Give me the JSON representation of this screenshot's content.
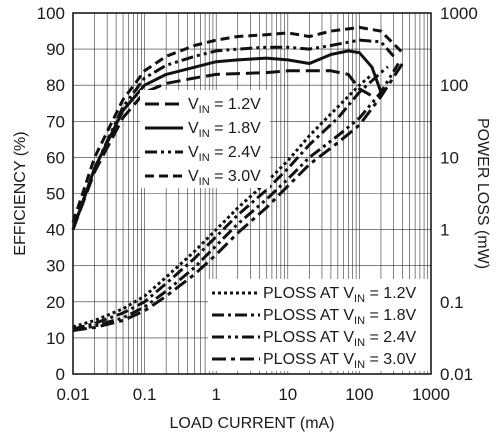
{
  "chart_data": {
    "type": "line",
    "title": "",
    "xlabel": "LOAD CURRENT (mA)",
    "ylabel_left": "EFFICIENCY (%)",
    "ylabel_right": "POWER LOSS (mW)",
    "x_scale": "log",
    "xlim": [
      0.01,
      1000
    ],
    "ylim_left": [
      0,
      100
    ],
    "ylim_right": [
      0.01,
      1000
    ],
    "grid": true,
    "x_ticks": [
      "0.01",
      "0.1",
      "1",
      "10",
      "100",
      "1000"
    ],
    "y_left_ticks": [
      "0",
      "10",
      "20",
      "30",
      "40",
      "50",
      "60",
      "70",
      "80",
      "90",
      "100"
    ],
    "y_right_ticks": [
      "0.01",
      "0.1",
      "1",
      "10",
      "100",
      "1000"
    ],
    "legend_efficiency": {
      "placement": "center-left",
      "entries": [
        {
          "main": "V",
          "sub": "IN",
          "tail": " = 1.2V",
          "dash": "14,6"
        },
        {
          "main": "V",
          "sub": "IN",
          "tail": " = 1.8V",
          "dash": ""
        },
        {
          "main": "V",
          "sub": "IN",
          "tail": " = 2.4V",
          "dash": "12,4,3,4,3,4"
        },
        {
          "main": "V",
          "sub": "IN",
          "tail": " = 3.0V",
          "dash": "9,5"
        }
      ]
    },
    "legend_ploss": {
      "placement": "bottom-right",
      "entries": [
        {
          "main": "PLOSS AT V",
          "sub": "IN",
          "tail": " = 1.2V",
          "dash": "3,3"
        },
        {
          "main": "PLOSS AT V",
          "sub": "IN",
          "tail": " = 1.8V",
          "dash": "12,4,3,4"
        },
        {
          "main": "PLOSS AT V",
          "sub": "IN",
          "tail": " = 2.4V",
          "dash": "12,4,3,4,3,4"
        },
        {
          "main": "PLOSS AT V",
          "sub": "IN",
          "tail": " = 3.0V",
          "dash": "14,5,4,5"
        }
      ]
    },
    "series": [
      {
        "group": "efficiency",
        "axis": "left",
        "dash": "14,6",
        "x": [
          0.01,
          0.02,
          0.05,
          0.1,
          0.2,
          0.5,
          1,
          2,
          5,
          10,
          20,
          40,
          70,
          100,
          150
        ],
        "y": [
          40,
          56,
          71,
          78,
          80.5,
          82,
          83,
          83.2,
          83.5,
          84,
          84,
          84,
          83,
          79,
          77
        ]
      },
      {
        "group": "efficiency",
        "axis": "left",
        "dash": "",
        "x": [
          0.01,
          0.02,
          0.05,
          0.1,
          0.2,
          0.5,
          1,
          2,
          5,
          10,
          20,
          40,
          70,
          100,
          150,
          200
        ],
        "y": [
          40,
          57,
          73,
          80,
          83,
          85,
          86.5,
          87,
          87.5,
          87,
          86,
          88.5,
          89.5,
          89,
          85,
          78
        ]
      },
      {
        "group": "efficiency",
        "axis": "left",
        "dash": "12,4,3,4,3,4",
        "x": [
          0.01,
          0.02,
          0.05,
          0.1,
          0.2,
          0.5,
          1,
          2,
          5,
          10,
          20,
          40,
          100,
          200,
          300
        ],
        "y": [
          40,
          57,
          74,
          82,
          85.5,
          88,
          89.5,
          90,
          90.5,
          90.5,
          90,
          91,
          92.5,
          92,
          88
        ]
      },
      {
        "group": "efficiency",
        "axis": "left",
        "dash": "9,5",
        "x": [
          0.01,
          0.02,
          0.05,
          0.1,
          0.2,
          0.5,
          1,
          2,
          5,
          10,
          20,
          40,
          100,
          200,
          400
        ],
        "y": [
          42,
          60,
          76,
          84,
          88,
          91,
          92.5,
          93.5,
          94,
          94.5,
          93.5,
          95,
          96,
          95,
          89
        ]
      },
      {
        "group": "ploss",
        "axis": "right",
        "dash": "3,3",
        "x": [
          0.01,
          0.02,
          0.05,
          0.1,
          0.2,
          0.5,
          1,
          2,
          5,
          10,
          20,
          50,
          100,
          150
        ],
        "y": [
          0.045,
          0.055,
          0.08,
          0.12,
          0.22,
          0.5,
          1.0,
          2.0,
          4.5,
          9.0,
          20,
          50,
          100,
          140
        ]
      },
      {
        "group": "ploss",
        "axis": "right",
        "dash": "12,4,3,4",
        "x": [
          0.01,
          0.02,
          0.05,
          0.1,
          0.2,
          0.5,
          1,
          2,
          5,
          10,
          20,
          50,
          100,
          200,
          250
        ],
        "y": [
          0.042,
          0.05,
          0.07,
          0.1,
          0.18,
          0.4,
          0.8,
          1.6,
          3.5,
          7.0,
          15,
          35,
          80,
          150,
          180
        ]
      },
      {
        "group": "ploss",
        "axis": "right",
        "dash": "12,4,3,4,3,4",
        "x": [
          0.01,
          0.02,
          0.05,
          0.1,
          0.2,
          0.5,
          1,
          2,
          5,
          10,
          20,
          50,
          100,
          200,
          350
        ],
        "y": [
          0.04,
          0.046,
          0.06,
          0.085,
          0.14,
          0.3,
          0.6,
          1.2,
          2.6,
          5.0,
          10,
          20,
          35,
          80,
          200
        ]
      },
      {
        "group": "ploss",
        "axis": "right",
        "dash": "14,5,4,5",
        "x": [
          0.01,
          0.02,
          0.05,
          0.1,
          0.2,
          0.5,
          1,
          2,
          5,
          10,
          20,
          50,
          100,
          200,
          400
        ],
        "y": [
          0.04,
          0.044,
          0.055,
          0.075,
          0.12,
          0.24,
          0.45,
          0.9,
          2.0,
          4.0,
          8,
          16,
          28,
          70,
          200
        ]
      }
    ]
  }
}
